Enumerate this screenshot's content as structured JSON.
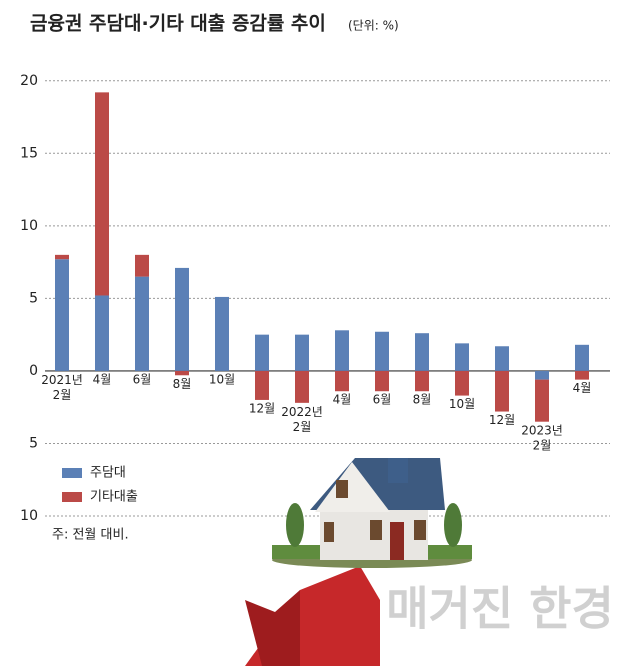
{
  "chart_data": {
    "type": "bar",
    "title": "금융권 주담대·기타 대출 증감률 추이",
    "subtitle": "(단위: %)",
    "note": "주: 전월 대비.",
    "watermark": "매거진 한경",
    "categories": [
      "2021년 2월",
      "4월",
      "6월",
      "8월",
      "10월",
      "12월",
      "2022년 2월",
      "4월",
      "6월",
      "8월",
      "10월",
      "12월",
      "2023년 2월",
      "4월"
    ],
    "series": [
      {
        "name": "주담대",
        "color": "#5b80b6",
        "values": [
          7.7,
          5.2,
          6.5,
          7.1,
          5.1,
          2.5,
          2.5,
          2.8,
          2.7,
          2.6,
          1.9,
          1.7,
          -0.6,
          1.8
        ]
      },
      {
        "name": "기타대출",
        "color": "#bb4a47",
        "values": [
          0.3,
          14.0,
          1.5,
          -0.3,
          0,
          -2.0,
          -2.2,
          -1.4,
          -1.4,
          -1.4,
          -1.7,
          -2.8,
          -2.9,
          -0.6
        ]
      }
    ],
    "stacked": true,
    "ylim": [
      -10,
      21.5
    ],
    "yticks": [
      20,
      15,
      10,
      5,
      0,
      {
        "value": -5,
        "label": "5"
      },
      {
        "value": -10,
        "label": "10"
      }
    ],
    "grid": true
  }
}
